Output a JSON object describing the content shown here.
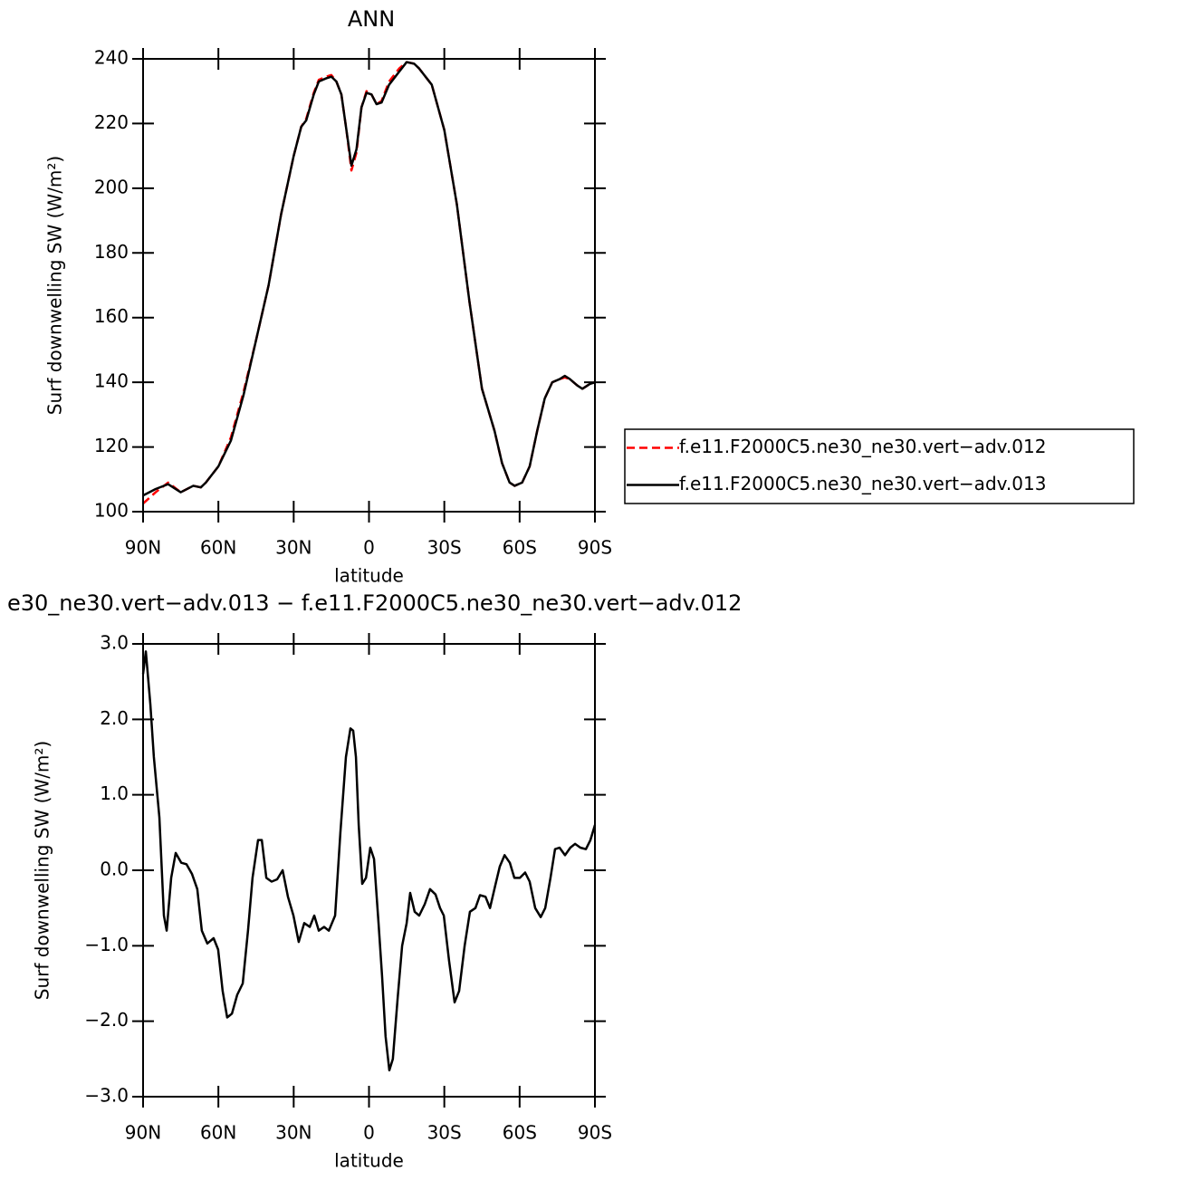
{
  "chart_data": [
    {
      "type": "line",
      "title": "ANN",
      "x_label": "latitude",
      "y_label": "Surf downwelling SW (W/m²)",
      "xlim": [
        90,
        -90
      ],
      "xticks": [
        {
          "value": 90,
          "label": "90N"
        },
        {
          "value": 60,
          "label": "60N"
        },
        {
          "value": 30,
          "label": "30N"
        },
        0,
        {
          "value": -30,
          "label": "30S"
        },
        {
          "value": -60,
          "label": "60S"
        },
        {
          "value": -90,
          "label": "90S"
        }
      ],
      "ylim": [
        100,
        240
      ],
      "yticks": [
        100,
        120,
        140,
        160,
        180,
        200,
        220,
        240
      ],
      "legend": "right",
      "x": [
        90,
        85,
        80,
        75,
        70,
        67,
        65,
        60,
        55,
        50,
        45,
        40,
        35,
        30,
        27,
        25,
        22,
        20,
        17,
        15,
        13,
        11,
        9,
        7,
        5,
        3,
        1,
        -1,
        -3,
        -5,
        -8,
        -12,
        -15,
        -18,
        -20,
        -25,
        -30,
        -35,
        -40,
        -45,
        -50,
        -53,
        -56,
        -58,
        -61,
        -64,
        -67,
        -70,
        -73,
        -76,
        -78,
        -80,
        -83,
        -85,
        -88,
        -90
      ],
      "series": [
        {
          "name": "f.e11.F2000C5.ne30_ne30.vert−adv.012",
          "color": "#ff0000",
          "dashed": true,
          "values": [
            102.5,
            106,
            109,
            106,
            108,
            107.5,
            109,
            114,
            123,
            137,
            153,
            170,
            192,
            210,
            219,
            221.5,
            229.5,
            233.5,
            234.5,
            235,
            233,
            229,
            218,
            205.5,
            211,
            225,
            230,
            229,
            226,
            227,
            233,
            237,
            239,
            238.5,
            237,
            232,
            218,
            195,
            165,
            138,
            125,
            115,
            109,
            108,
            109,
            114,
            125,
            135,
            140,
            141,
            141.5,
            141,
            139,
            138,
            139.5,
            140
          ]
        },
        {
          "name": "f.e11.F2000C5.ne30_ne30.vert−adv.013",
          "color": "#000000",
          "dashed": false,
          "values": [
            105,
            107,
            108.5,
            106,
            108,
            107.5,
            109,
            114,
            122,
            136,
            153,
            170,
            192,
            210,
            219,
            221,
            229,
            233,
            234,
            234.5,
            233,
            229,
            218,
            207,
            212,
            225,
            229.5,
            229,
            226,
            226.5,
            232,
            236,
            239,
            238.5,
            237,
            232,
            218,
            195,
            165,
            138,
            125,
            115,
            109,
            108,
            109,
            114,
            125,
            135,
            140,
            141,
            142,
            141,
            139,
            138,
            139.5,
            140
          ]
        }
      ]
    },
    {
      "type": "line",
      "title": "e30_ne30.vert−adv.013 − f.e11.F2000C5.ne30_ne30.vert−adv.012",
      "x_label": "latitude",
      "y_label": "Surf downwelling SW (W/m²)",
      "xlim": [
        90,
        -90
      ],
      "xticks": [
        {
          "value": 90,
          "label": "90N"
        },
        {
          "value": 60,
          "label": "60N"
        },
        {
          "value": 30,
          "label": "30N"
        },
        0,
        {
          "value": -30,
          "label": "30S"
        },
        {
          "value": -60,
          "label": "60S"
        },
        {
          "value": -90,
          "label": "90S"
        }
      ],
      "ylim": [
        -3,
        3
      ],
      "yticks": [
        {
          "value": -3,
          "label": "−3.0"
        },
        {
          "value": -2,
          "label": "−2.0"
        },
        {
          "value": -1,
          "label": "−1.0"
        },
        {
          "value": 0,
          "label": "0.0"
        },
        {
          "value": 1,
          "label": "1.0"
        },
        {
          "value": 2,
          "label": "2.0"
        },
        {
          "value": 3,
          "label": "3.0"
        }
      ],
      "x": [
        90,
        88.9,
        87.1,
        85.7,
        83.5,
        81.7,
        80.6,
        78.8,
        77.0,
        74.8,
        72.7,
        70.5,
        68.4,
        66.6,
        64.4,
        61.9,
        60.1,
        58.3,
        56.5,
        54.6,
        52.5,
        50.3,
        48.2,
        46.4,
        44.2,
        42.7,
        40.9,
        38.8,
        36.6,
        34.4,
        32.3,
        30.1,
        28.0,
        25.8,
        23.6,
        21.8,
        20.0,
        17.9,
        16.0,
        13.5,
        11.4,
        9.2,
        7.4,
        6.3,
        5.2,
        4.1,
        2.7,
        1.2,
        -0.5,
        -2.0,
        -3.8,
        -5.2,
        -6.6,
        -8.1,
        -9.5,
        -11.4,
        -13.2,
        -15.0,
        -16.4,
        -18.2,
        -20.0,
        -22.2,
        -24.3,
        -26.5,
        -28.3,
        -29.8,
        -31.9,
        -34.1,
        -35.9,
        -38.1,
        -40.2,
        -42.4,
        -44.2,
        -46.4,
        -48.2,
        -50.3,
        -52.1,
        -54.0,
        -56.1,
        -57.9,
        -60.1,
        -62.2,
        -64.0,
        -66.2,
        -68.4,
        -70.2,
        -72.3,
        -74.1,
        -75.9,
        -78.1,
        -80.2,
        -82.1,
        -84.2,
        -86.4,
        -88.2,
        -90
      ],
      "series": [
        {
          "color": "#000000",
          "dashed": false,
          "values": [
            2.6,
            2.9,
            2.2,
            1.5,
            0.7,
            -0.6,
            -0.8,
            -0.1,
            0.23,
            0.1,
            0.08,
            -0.05,
            -0.25,
            -0.8,
            -0.97,
            -0.9,
            -1.05,
            -1.6,
            -1.95,
            -1.9,
            -1.65,
            -1.5,
            -0.8,
            -0.1,
            0.4,
            0.4,
            -0.1,
            -0.15,
            -0.12,
            0.0,
            -0.35,
            -0.6,
            -0.95,
            -0.7,
            -0.75,
            -0.6,
            -0.8,
            -0.75,
            -0.8,
            -0.6,
            0.5,
            1.5,
            1.88,
            1.85,
            1.5,
            0.6,
            -0.18,
            -0.1,
            0.3,
            0.15,
            -0.7,
            -1.4,
            -2.2,
            -2.65,
            -2.5,
            -1.7,
            -1.0,
            -0.7,
            -0.3,
            -0.55,
            -0.6,
            -0.45,
            -0.25,
            -0.32,
            -0.5,
            -0.6,
            -1.2,
            -1.75,
            -1.6,
            -1.0,
            -0.55,
            -0.5,
            -0.33,
            -0.35,
            -0.5,
            -0.2,
            0.05,
            0.2,
            0.1,
            -0.1,
            -0.1,
            -0.03,
            -0.15,
            -0.5,
            -0.62,
            -0.5,
            -0.1,
            0.28,
            0.3,
            0.2,
            0.3,
            0.35,
            0.3,
            0.28,
            0.4,
            0.6
          ]
        }
      ]
    }
  ]
}
